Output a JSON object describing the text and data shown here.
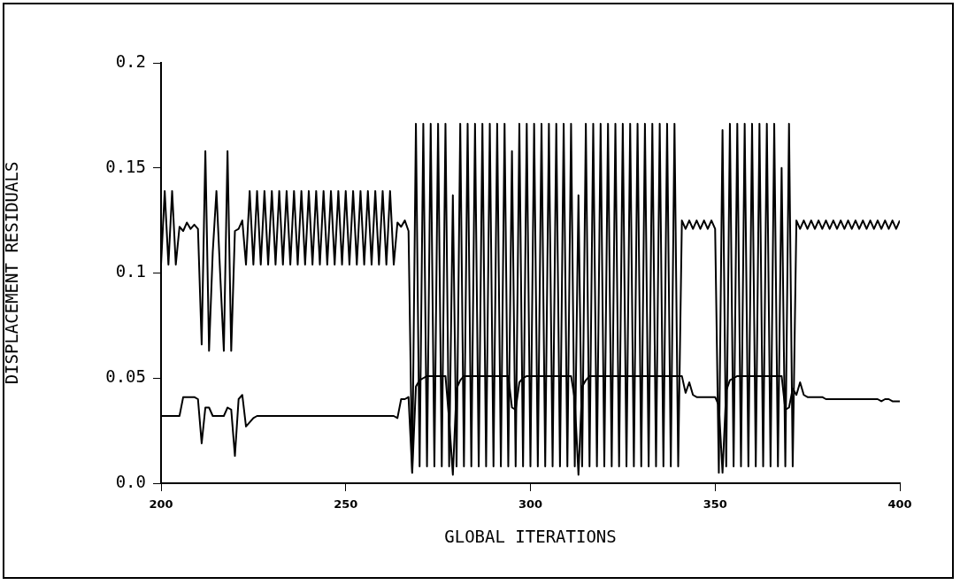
{
  "chart_data": {
    "type": "line",
    "xlabel": "GLOBAL ITERATIONS",
    "ylabel": "DISPLACEMENT RESIDUALS",
    "xlim": [
      200,
      400
    ],
    "xticks": [
      200,
      250,
      300,
      350,
      400
    ],
    "ylim": [
      0,
      0.2
    ],
    "yticks": [
      {
        "value": 0,
        "label": "0.0"
      },
      0.05,
      0.1,
      0.15,
      0.2
    ],
    "grid": false,
    "legend": false,
    "marker": "none",
    "line_style": "solid",
    "x": [
      200,
      201,
      202,
      203,
      204,
      205,
      206,
      207,
      208,
      209,
      210,
      211,
      212,
      213,
      214,
      215,
      216,
      217,
      218,
      219,
      220,
      221,
      222,
      223,
      224,
      225,
      226,
      227,
      228,
      229,
      230,
      231,
      232,
      233,
      234,
      235,
      236,
      237,
      238,
      239,
      240,
      241,
      242,
      243,
      244,
      245,
      246,
      247,
      248,
      249,
      250,
      251,
      252,
      253,
      254,
      255,
      256,
      257,
      258,
      259,
      260,
      261,
      262,
      263,
      264,
      265,
      266,
      267,
      268,
      269,
      270,
      271,
      272,
      273,
      274,
      275,
      276,
      277,
      278,
      279,
      280,
      281,
      282,
      283,
      284,
      285,
      286,
      287,
      288,
      289,
      290,
      291,
      292,
      293,
      294,
      295,
      296,
      297,
      298,
      299,
      300,
      301,
      302,
      303,
      304,
      305,
      306,
      307,
      308,
      309,
      310,
      311,
      312,
      313,
      314,
      315,
      316,
      317,
      318,
      319,
      320,
      321,
      322,
      323,
      324,
      325,
      326,
      327,
      328,
      329,
      330,
      331,
      332,
      333,
      334,
      335,
      336,
      337,
      338,
      339,
      340,
      341,
      342,
      343,
      344,
      345,
      346,
      347,
      348,
      349,
      350,
      351,
      352,
      353,
      354,
      355,
      356,
      357,
      358,
      359,
      360,
      361,
      362,
      363,
      364,
      365,
      366,
      367,
      368,
      369,
      370,
      371,
      372,
      373,
      374,
      375,
      376,
      377,
      378,
      379,
      380,
      381,
      382,
      383,
      384,
      385,
      386,
      387,
      388,
      389,
      390,
      391,
      392,
      393,
      394,
      395,
      396,
      397,
      398,
      399,
      400
    ],
    "series": [
      {
        "color": "#000000",
        "values": [
          0.104,
          0.139,
          0.104,
          0.139,
          0.104,
          0.122,
          0.12,
          0.124,
          0.121,
          0.123,
          0.121,
          0.066,
          0.158,
          0.063,
          0.11,
          0.139,
          0.1,
          0.063,
          0.158,
          0.063,
          0.12,
          0.121,
          0.125,
          0.104,
          0.139,
          0.104,
          0.139,
          0.104,
          0.139,
          0.104,
          0.139,
          0.104,
          0.139,
          0.104,
          0.139,
          0.104,
          0.139,
          0.104,
          0.139,
          0.104,
          0.139,
          0.104,
          0.139,
          0.104,
          0.139,
          0.104,
          0.139,
          0.104,
          0.139,
          0.104,
          0.139,
          0.104,
          0.139,
          0.104,
          0.139,
          0.104,
          0.139,
          0.104,
          0.139,
          0.104,
          0.139,
          0.104,
          0.139,
          0.104,
          0.124,
          0.122,
          0.125,
          0.12,
          0.005,
          0.171,
          0.008,
          0.171,
          0.008,
          0.171,
          0.008,
          0.171,
          0.008,
          0.171,
          0.008,
          0.137,
          0.008,
          0.171,
          0.008,
          0.171,
          0.008,
          0.171,
          0.008,
          0.171,
          0.008,
          0.171,
          0.008,
          0.171,
          0.008,
          0.171,
          0.008,
          0.158,
          0.008,
          0.171,
          0.008,
          0.171,
          0.008,
          0.171,
          0.008,
          0.171,
          0.008,
          0.171,
          0.008,
          0.171,
          0.008,
          0.171,
          0.008,
          0.171,
          0.008,
          0.137,
          0.008,
          0.171,
          0.008,
          0.171,
          0.008,
          0.171,
          0.008,
          0.171,
          0.008,
          0.171,
          0.008,
          0.171,
          0.008,
          0.171,
          0.008,
          0.171,
          0.008,
          0.171,
          0.008,
          0.171,
          0.008,
          0.171,
          0.008,
          0.171,
          0.008,
          0.171,
          0.008,
          0.125,
          0.121,
          0.125,
          0.121,
          0.125,
          0.121,
          0.125,
          0.121,
          0.125,
          0.121,
          0.005,
          0.168,
          0.008,
          0.171,
          0.008,
          0.171,
          0.008,
          0.171,
          0.008,
          0.171,
          0.008,
          0.171,
          0.008,
          0.171,
          0.008,
          0.171,
          0.008,
          0.15,
          0.008,
          0.171,
          0.008,
          0.125,
          0.121,
          0.125,
          0.121,
          0.125,
          0.121,
          0.125,
          0.121,
          0.125,
          0.121,
          0.125,
          0.121,
          0.125,
          0.121,
          0.125,
          0.121,
          0.125,
          0.121,
          0.125,
          0.121,
          0.125,
          0.121,
          0.125,
          0.121,
          0.125,
          0.121,
          0.125,
          0.121,
          0.125
        ]
      },
      {
        "color": "#000000",
        "values": [
          0.032,
          0.032,
          0.032,
          0.032,
          0.032,
          0.032,
          0.041,
          0.041,
          0.041,
          0.041,
          0.04,
          0.019,
          0.036,
          0.036,
          0.032,
          0.032,
          0.032,
          0.032,
          0.036,
          0.035,
          0.013,
          0.04,
          0.042,
          0.027,
          0.029,
          0.031,
          0.032,
          0.032,
          0.032,
          0.032,
          0.032,
          0.032,
          0.032,
          0.032,
          0.032,
          0.032,
          0.032,
          0.032,
          0.032,
          0.032,
          0.032,
          0.032,
          0.032,
          0.032,
          0.032,
          0.032,
          0.032,
          0.032,
          0.032,
          0.032,
          0.032,
          0.032,
          0.032,
          0.032,
          0.032,
          0.032,
          0.032,
          0.032,
          0.032,
          0.032,
          0.032,
          0.032,
          0.032,
          0.032,
          0.031,
          0.04,
          0.04,
          0.041,
          0.005,
          0.046,
          0.049,
          0.05,
          0.051,
          0.051,
          0.051,
          0.051,
          0.051,
          0.051,
          0.03,
          0.004,
          0.045,
          0.049,
          0.051,
          0.051,
          0.051,
          0.051,
          0.051,
          0.051,
          0.051,
          0.051,
          0.051,
          0.051,
          0.051,
          0.051,
          0.051,
          0.036,
          0.035,
          0.048,
          0.05,
          0.051,
          0.051,
          0.051,
          0.051,
          0.051,
          0.051,
          0.051,
          0.051,
          0.051,
          0.051,
          0.051,
          0.051,
          0.051,
          0.04,
          0.004,
          0.046,
          0.049,
          0.051,
          0.051,
          0.051,
          0.051,
          0.051,
          0.051,
          0.051,
          0.051,
          0.051,
          0.051,
          0.051,
          0.051,
          0.051,
          0.051,
          0.051,
          0.051,
          0.051,
          0.051,
          0.051,
          0.051,
          0.051,
          0.051,
          0.051,
          0.051,
          0.051,
          0.051,
          0.043,
          0.048,
          0.042,
          0.041,
          0.041,
          0.041,
          0.041,
          0.041,
          0.041,
          0.037,
          0.005,
          0.044,
          0.049,
          0.05,
          0.051,
          0.051,
          0.051,
          0.051,
          0.051,
          0.051,
          0.051,
          0.051,
          0.051,
          0.051,
          0.051,
          0.051,
          0.051,
          0.035,
          0.036,
          0.045,
          0.042,
          0.048,
          0.042,
          0.041,
          0.041,
          0.041,
          0.041,
          0.041,
          0.04,
          0.04,
          0.04,
          0.04,
          0.04,
          0.04,
          0.04,
          0.04,
          0.04,
          0.04,
          0.04,
          0.04,
          0.04,
          0.04,
          0.04,
          0.039,
          0.04,
          0.04,
          0.039,
          0.039,
          0.039
        ]
      }
    ]
  }
}
